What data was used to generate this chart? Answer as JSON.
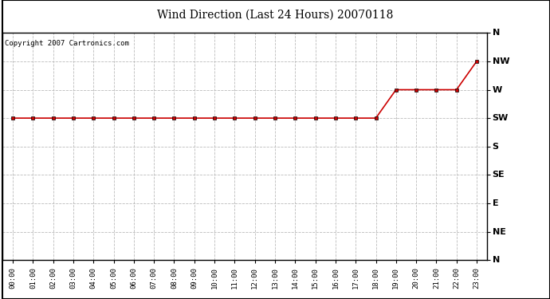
{
  "title": "Wind Direction (Last 24 Hours) 20070118",
  "copyright_text": "Copyright 2007 Cartronics.com",
  "background_color": "#ffffff",
  "plot_bg_color": "#ffffff",
  "grid_color": "#bbbbbb",
  "line_color": "#cc0000",
  "marker_color": "#cc0000",
  "x_labels": [
    "00:00",
    "01:00",
    "02:00",
    "03:00",
    "04:00",
    "05:00",
    "06:00",
    "07:00",
    "08:00",
    "09:00",
    "10:00",
    "11:00",
    "12:00",
    "13:00",
    "14:00",
    "15:00",
    "16:00",
    "17:00",
    "18:00",
    "19:00",
    "20:00",
    "21:00",
    "22:00",
    "23:00"
  ],
  "y_tick_labels": [
    "N",
    "NE",
    "E",
    "SE",
    "S",
    "SW",
    "W",
    "NW",
    "N"
  ],
  "data_hours": [
    0,
    1,
    2,
    3,
    4,
    5,
    6,
    7,
    8,
    9,
    10,
    11,
    12,
    13,
    14,
    15,
    16,
    17,
    18,
    19,
    20,
    21,
    22,
    23
  ],
  "data_values": [
    5,
    5,
    5,
    5,
    5,
    5,
    5,
    5,
    5,
    5,
    5,
    5,
    5,
    5,
    5,
    5,
    5,
    5,
    5,
    6,
    6,
    6,
    6,
    7
  ]
}
